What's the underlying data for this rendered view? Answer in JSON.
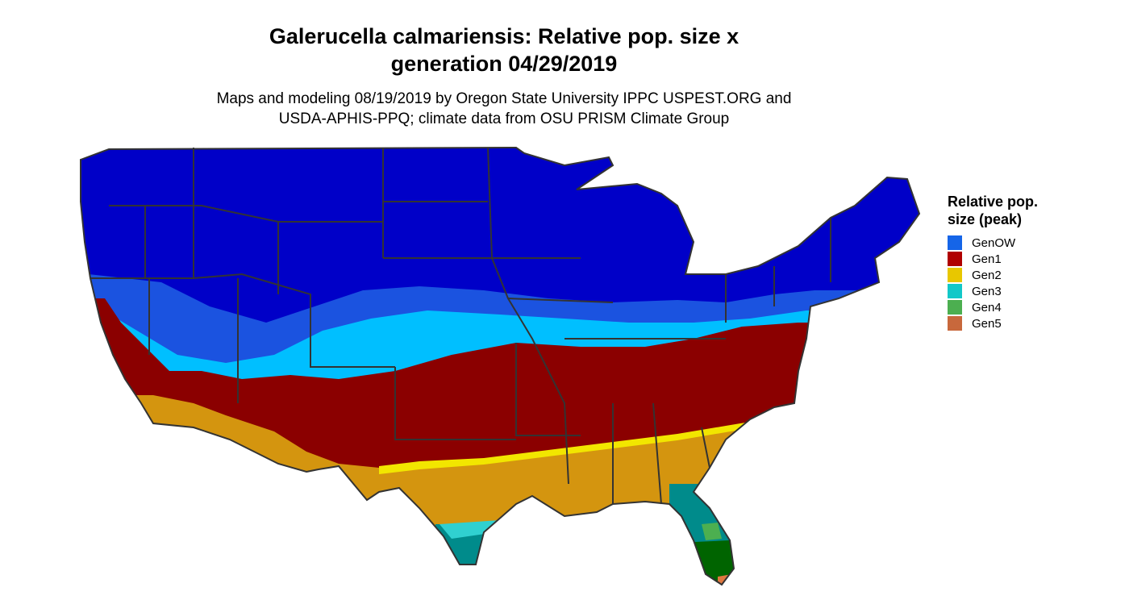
{
  "title_line1": "Galerucella calmariensis: Relative pop. size x",
  "title_line2": "generation 04/29/2019",
  "subtitle_line1": "Maps and modeling 08/19/2019 by Oregon State University IPPC USPEST.ORG and",
  "subtitle_line2": "USDA-APHIS-PPQ; climate data from OSU PRISM Climate Group",
  "legend": {
    "title_line1": "Relative pop.",
    "title_line2": "size (peak)",
    "items": [
      {
        "label": "GenOW",
        "color": "#1565e8"
      },
      {
        "label": "Gen1",
        "color": "#b00000"
      },
      {
        "label": "Gen2",
        "color": "#e8c700"
      },
      {
        "label": "Gen3",
        "color": "#12c8c8"
      },
      {
        "label": "Gen4",
        "color": "#4caf50"
      },
      {
        "label": "Gen5",
        "color": "#c8683c"
      }
    ]
  },
  "map_colors": {
    "deep_blue": "#0000c8",
    "blue": "#1b53e0",
    "light_blue": "#00bfff",
    "dark_red": "#8b0000",
    "gold": "#d4950f",
    "yellow": "#f2e600",
    "teal": "#008b8b",
    "cyan": "#30d0d0",
    "dark_green": "#006400",
    "green": "#4caf50",
    "orange": "#e07840",
    "border": "#333333"
  }
}
